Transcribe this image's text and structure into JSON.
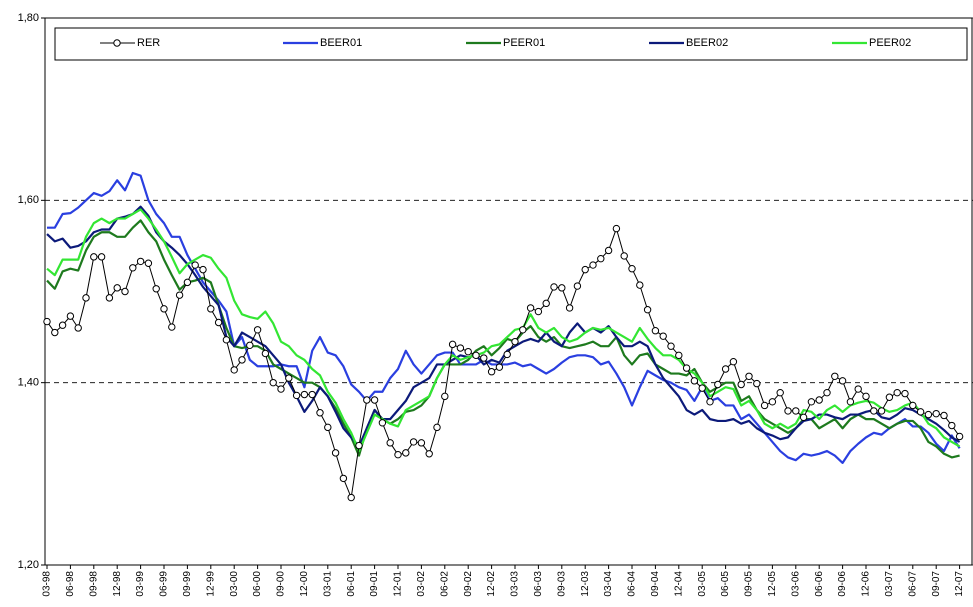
{
  "chart_data": {
    "type": "line",
    "categories": [
      "03-98",
      null,
      null,
      "06-98",
      null,
      null,
      "09-98",
      null,
      null,
      "12-98",
      null,
      null,
      "03-99",
      null,
      null,
      "06-99",
      null,
      null,
      "09-99",
      null,
      null,
      "12-99",
      null,
      null,
      "03-00",
      null,
      null,
      "06-00",
      null,
      null,
      "09-00",
      null,
      null,
      "12-00",
      null,
      null,
      "03-01",
      null,
      null,
      "06-01",
      null,
      null,
      "09-01",
      null,
      null,
      "12-01",
      null,
      null,
      "03-02",
      null,
      null,
      "06-02",
      null,
      null,
      "09-02",
      null,
      null,
      "12-02",
      null,
      null,
      "03-03",
      null,
      null,
      "06-03",
      null,
      null,
      "09-03",
      null,
      null,
      "12-03",
      null,
      null,
      "03-04",
      null,
      null,
      "06-04",
      null,
      null,
      "09-04",
      null,
      null,
      "12-04",
      null,
      null,
      "03-05",
      null,
      null,
      "06-05",
      null,
      null,
      "09-05",
      null,
      null,
      "12-05",
      null,
      null,
      "03-06",
      null,
      null,
      "06-06",
      null,
      null,
      "09-06",
      null,
      null,
      "12-06",
      null,
      null,
      "03-07",
      null,
      null,
      "06-07",
      null,
      null,
      "09-07",
      null,
      null,
      "12-07"
    ],
    "series": [
      {
        "name": "RER",
        "color": "#000000",
        "marker": "circle",
        "values": [
          1.467,
          1.455,
          1.463,
          1.473,
          1.46,
          1.493,
          1.538,
          1.538,
          1.493,
          1.504,
          1.5,
          1.526,
          1.533,
          1.531,
          1.503,
          1.481,
          1.461,
          1.496,
          1.51,
          1.529,
          1.524,
          1.481,
          1.466,
          1.447,
          1.414,
          1.425,
          1.441,
          1.458,
          1.432,
          1.4,
          1.393,
          1.405,
          1.386,
          1.387,
          1.387,
          1.367,
          1.351,
          1.323,
          1.295,
          1.274,
          1.331,
          1.381,
          1.381,
          1.356,
          1.334,
          1.321,
          1.323,
          1.335,
          1.334,
          1.322,
          1.351,
          1.385,
          1.442,
          1.438,
          1.434,
          1.43,
          1.427,
          1.412,
          1.417,
          1.431,
          1.445,
          1.458,
          1.482,
          1.478,
          1.487,
          1.505,
          1.504,
          1.482,
          1.506,
          1.524,
          1.529,
          1.536,
          1.545,
          1.569,
          1.539,
          1.525,
          1.507,
          1.48,
          1.457,
          1.451,
          1.44,
          1.43,
          1.416,
          1.402,
          1.394,
          1.379,
          1.398,
          1.415,
          1.423,
          1.398,
          1.407,
          1.399,
          1.375,
          1.379,
          1.389,
          1.369,
          1.369,
          1.362,
          1.379,
          1.381,
          1.389,
          1.407,
          1.402,
          1.379,
          1.393,
          1.385,
          1.369,
          1.369,
          1.384,
          1.389,
          1.388,
          1.375,
          1.368,
          1.365,
          1.366,
          1.364,
          1.353,
          1.341
        ]
      },
      {
        "name": "BEER01",
        "color": "#2a3fe0",
        "values": [
          1.57,
          1.57,
          1.585,
          1.586,
          1.592,
          1.6,
          1.608,
          1.605,
          1.61,
          1.622,
          1.611,
          1.63,
          1.627,
          1.6,
          1.585,
          1.575,
          1.56,
          1.56,
          1.54,
          1.525,
          1.51,
          1.5,
          1.49,
          1.478,
          1.44,
          1.45,
          1.425,
          1.418,
          1.418,
          1.418,
          1.42,
          1.418,
          1.418,
          1.395,
          1.435,
          1.45,
          1.433,
          1.43,
          1.418,
          1.398,
          1.39,
          1.38,
          1.39,
          1.39,
          1.405,
          1.415,
          1.435,
          1.42,
          1.41,
          1.42,
          1.43,
          1.433,
          1.433,
          1.42,
          1.42,
          1.42,
          1.425,
          1.42,
          1.42,
          1.42,
          1.422,
          1.418,
          1.42,
          1.415,
          1.41,
          1.415,
          1.422,
          1.428,
          1.43,
          1.43,
          1.428,
          1.42,
          1.423,
          1.41,
          1.395,
          1.375,
          1.395,
          1.413,
          1.408,
          1.403,
          1.4,
          1.395,
          1.392,
          1.38,
          1.395,
          1.38,
          1.383,
          1.375,
          1.375,
          1.36,
          1.365,
          1.355,
          1.345,
          1.335,
          1.325,
          1.318,
          1.315,
          1.322,
          1.32,
          1.322,
          1.325,
          1.32,
          1.312,
          1.325,
          1.333,
          1.34,
          1.345,
          1.343,
          1.35,
          1.355,
          1.36,
          1.352,
          1.352,
          1.345,
          1.333,
          1.325,
          1.342,
          1.328
        ]
      },
      {
        "name": "PEER01",
        "color": "#1e7a1e",
        "values": [
          1.512,
          1.503,
          1.522,
          1.525,
          1.523,
          1.545,
          1.56,
          1.565,
          1.565,
          1.56,
          1.56,
          1.57,
          1.578,
          1.565,
          1.555,
          1.535,
          1.518,
          1.502,
          1.51,
          1.512,
          1.515,
          1.51,
          1.485,
          1.46,
          1.44,
          1.438,
          1.44,
          1.44,
          1.435,
          1.42,
          1.415,
          1.41,
          1.405,
          1.4,
          1.4,
          1.395,
          1.385,
          1.372,
          1.355,
          1.34,
          1.32,
          1.35,
          1.37,
          1.36,
          1.355,
          1.36,
          1.368,
          1.37,
          1.375,
          1.385,
          1.405,
          1.42,
          1.42,
          1.42,
          1.425,
          1.435,
          1.44,
          1.43,
          1.438,
          1.448,
          1.445,
          1.455,
          1.462,
          1.45,
          1.445,
          1.45,
          1.44,
          1.438,
          1.44,
          1.442,
          1.445,
          1.44,
          1.44,
          1.45,
          1.43,
          1.42,
          1.43,
          1.432,
          1.42,
          1.415,
          1.41,
          1.41,
          1.408,
          1.415,
          1.4,
          1.39,
          1.395,
          1.4,
          1.4,
          1.38,
          1.385,
          1.37,
          1.36,
          1.355,
          1.35,
          1.345,
          1.35,
          1.36,
          1.36,
          1.35,
          1.355,
          1.36,
          1.35,
          1.36,
          1.365,
          1.36,
          1.36,
          1.355,
          1.35,
          1.355,
          1.358,
          1.358,
          1.35,
          1.335,
          1.33,
          1.322,
          1.318,
          1.32
        ]
      },
      {
        "name": "BEER02",
        "color": "#0c1a7a",
        "values": [
          1.563,
          1.555,
          1.558,
          1.548,
          1.55,
          1.555,
          1.565,
          1.568,
          1.568,
          1.58,
          1.582,
          1.585,
          1.593,
          1.583,
          1.565,
          1.555,
          1.548,
          1.54,
          1.53,
          1.518,
          1.505,
          1.495,
          1.485,
          1.45,
          1.44,
          1.455,
          1.45,
          1.445,
          1.44,
          1.43,
          1.42,
          1.4,
          1.385,
          1.368,
          1.38,
          1.395,
          1.385,
          1.368,
          1.35,
          1.34,
          1.33,
          1.35,
          1.37,
          1.36,
          1.36,
          1.37,
          1.38,
          1.395,
          1.4,
          1.405,
          1.42,
          1.42,
          1.425,
          1.43,
          1.428,
          1.43,
          1.42,
          1.425,
          1.422,
          1.435,
          1.44,
          1.445,
          1.448,
          1.445,
          1.455,
          1.445,
          1.44,
          1.455,
          1.465,
          1.455,
          1.46,
          1.455,
          1.462,
          1.45,
          1.44,
          1.44,
          1.445,
          1.44,
          1.42,
          1.405,
          1.395,
          1.385,
          1.37,
          1.365,
          1.37,
          1.36,
          1.358,
          1.358,
          1.36,
          1.355,
          1.358,
          1.35,
          1.345,
          1.342,
          1.338,
          1.34,
          1.35,
          1.358,
          1.36,
          1.365,
          1.365,
          1.362,
          1.36,
          1.365,
          1.365,
          1.368,
          1.37,
          1.362,
          1.36,
          1.365,
          1.372,
          1.37,
          1.365,
          1.36,
          1.355,
          1.348,
          1.34,
          1.335
        ]
      },
      {
        "name": "PEER02",
        "color": "#33e633",
        "values": [
          1.525,
          1.518,
          1.535,
          1.535,
          1.535,
          1.56,
          1.575,
          1.58,
          1.575,
          1.58,
          1.58,
          1.585,
          1.59,
          1.58,
          1.568,
          1.555,
          1.538,
          1.52,
          1.53,
          1.535,
          1.54,
          1.537,
          1.525,
          1.515,
          1.49,
          1.475,
          1.472,
          1.47,
          1.478,
          1.465,
          1.445,
          1.44,
          1.43,
          1.425,
          1.415,
          1.408,
          1.39,
          1.378,
          1.36,
          1.345,
          1.325,
          1.345,
          1.365,
          1.36,
          1.355,
          1.352,
          1.37,
          1.375,
          1.38,
          1.385,
          1.405,
          1.42,
          1.43,
          1.425,
          1.428,
          1.43,
          1.433,
          1.44,
          1.442,
          1.45,
          1.458,
          1.46,
          1.475,
          1.46,
          1.455,
          1.46,
          1.45,
          1.445,
          1.448,
          1.455,
          1.46,
          1.458,
          1.46,
          1.455,
          1.45,
          1.445,
          1.46,
          1.448,
          1.438,
          1.43,
          1.43,
          1.425,
          1.415,
          1.41,
          1.4,
          1.385,
          1.39,
          1.395,
          1.393,
          1.375,
          1.38,
          1.37,
          1.355,
          1.35,
          1.355,
          1.35,
          1.355,
          1.37,
          1.368,
          1.36,
          1.37,
          1.375,
          1.368,
          1.375,
          1.378,
          1.38,
          1.378,
          1.372,
          1.368,
          1.37,
          1.375,
          1.378,
          1.368,
          1.355,
          1.35,
          1.34,
          1.335,
          1.33
        ]
      }
    ],
    "ylim": [
      1.2,
      1.8
    ],
    "yticks": [
      {
        "value": 1.2,
        "label": "1,20"
      },
      {
        "value": 1.4,
        "label": "1,40"
      },
      {
        "value": 1.6,
        "label": "1,60"
      },
      {
        "value": 1.8,
        "label": "1,80"
      }
    ],
    "grid": true,
    "legend": "top"
  }
}
